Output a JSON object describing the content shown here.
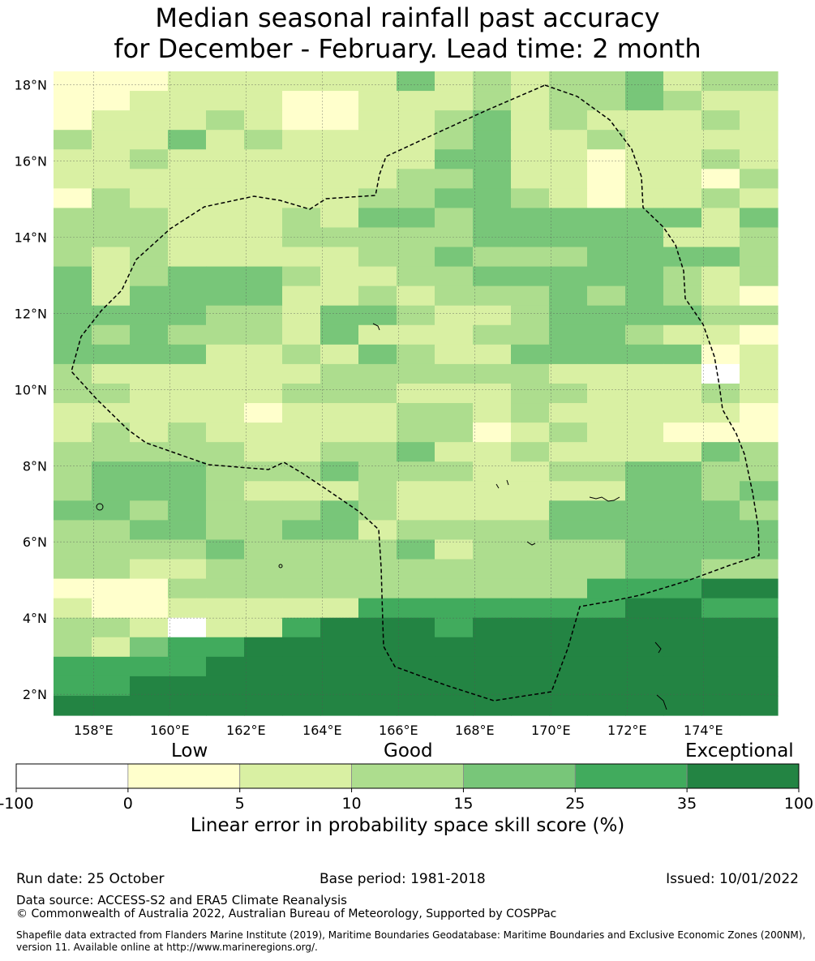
{
  "title": {
    "line1": "Median seasonal rainfall past accuracy",
    "line2": "for December - February. Lead time: 2 month"
  },
  "map": {
    "lat_ticks": [
      "18°N",
      "16°N",
      "14°N",
      "12°N",
      "10°N",
      "8°N",
      "6°N",
      "4°N",
      "2°N"
    ],
    "lon_ticks": [
      "158°E",
      "160°E",
      "162°E",
      "164°E",
      "166°E",
      "168°E",
      "170°E",
      "172°E",
      "174°E"
    ],
    "lat_range": [
      1.45,
      18.35
    ],
    "lon_range": [
      156.95,
      175.95
    ],
    "colors": [
      "#ffffff",
      "#ffffcc",
      "#d9f0a3",
      "#addd8e",
      "#78c679",
      "#41ab5d",
      "#238443"
    ],
    "grid_rows": [
      "1112222224232334233",
      "1122221122232334322",
      "1222321122342322232",
      "3224232222342232222",
      "2232222222442212232",
      "2222222223342212213",
      "1322222233443212232",
      "3332223244344444424",
      "3332223333344444223",
      "3232222233433344443",
      "4234443223344444323",
      "4244442232333434321",
      "4444332443223444433",
      "4343332422233443221",
      "4444223243224444412",
      "3222222333333222202",
      "3322223332223322232",
      "2222212223323222221",
      "2323222223312322111",
      "3333322334223222243",
      "3444333433322334433",
      "3444322232222224434",
      "4434333432222444443",
      "3344334423333444444",
      "3333433334233334444",
      "3322333333333334433",
      "1113333333333355566",
      "2112222255555556655",
      "3320225666566666666",
      "3245566666666666666",
      "5555666666666666666",
      "5566666666666666666",
      "6666666666666666666"
    ]
  },
  "colorbar": {
    "categories": [
      "Low",
      "Good",
      "Exceptional"
    ],
    "ticks": [
      "-100",
      "0",
      "5",
      "10",
      "15",
      "25",
      "35",
      "100"
    ],
    "label": "Linear error in probability space skill score (%)"
  },
  "footer": {
    "run_date": "Run date: 25 October",
    "base_period": "Base period: 1981-2018",
    "issued": "Issued: 10/01/2022",
    "data_source": "Data source: ACCESS-S2 and ERA5 Climate Reanalysis",
    "copyright": "© Commonwealth of Australia 2022, Australian Bureau of Meteorology, Supported by COSPPac",
    "shapefile": "Shapefile data extracted from Flanders Marine Institute (2019), Maritime Boundaries Geodatabase: Maritime Boundaries and Exclusive Economic Zones (200NM), version 11. Available online at http://www.marineregions.org/."
  }
}
